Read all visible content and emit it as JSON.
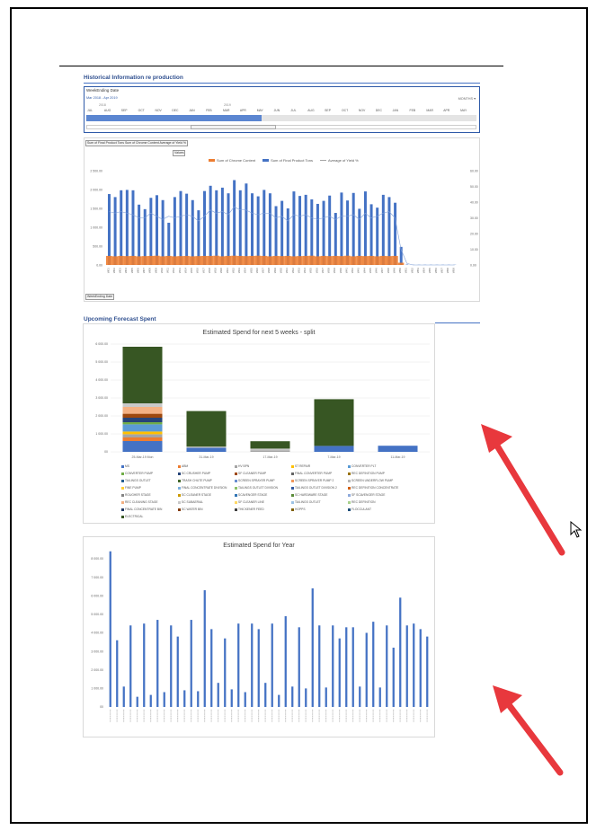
{
  "sections": {
    "historical": "Historical Information re production",
    "forecast": "Upcoming Forecast Spent"
  },
  "slicer": {
    "header": "WeekEnding Date",
    "selection": "Mar 2018 - Apr 2019",
    "level": "MONTHS",
    "years": [
      "2018",
      "2019"
    ],
    "months": [
      "JUL",
      "AUG",
      "SEP",
      "OCT",
      "NOV",
      "DEC",
      "JAN",
      "FEB",
      "MAR",
      "APR",
      "MAY",
      "JUN",
      "JUL",
      "AUG",
      "SEP",
      "OCT",
      "NOV",
      "DEC",
      "JAN",
      "FEB",
      "MAR",
      "APR",
      "MAY"
    ],
    "selected_fraction": 0.45
  },
  "pivot_chart": {
    "field_button": "Sum of Final Product Tons  Sum of Chrome Content  Average of Yield %",
    "values_button": "Values",
    "axis_button": "WeekEnding Date"
  },
  "chart_data": [
    {
      "type": "bar",
      "title": "",
      "legend_position": "top",
      "y_ticks": [
        "2 500.00",
        "2 000.00",
        "1 500.00",
        "1 000.00",
        "500.00",
        "0.00"
      ],
      "y2_ticks": [
        "60.00",
        "50.00",
        "40.00",
        "30.00",
        "20.00",
        "10.00",
        "0.00"
      ],
      "ylim": [
        0,
        2500
      ],
      "y2lim": [
        0,
        60
      ],
      "categories": [
        "W01",
        "W02",
        "W03",
        "W04",
        "W05",
        "W06",
        "W07",
        "W08",
        "W09",
        "W10",
        "W11",
        "W12",
        "W13",
        "W14",
        "W15",
        "W16",
        "W17",
        "W18",
        "W19",
        "W20",
        "W21",
        "W22",
        "W23",
        "W24",
        "W25",
        "W26",
        "W27",
        "W28",
        "W29",
        "W30",
        "W31",
        "W32",
        "W33",
        "W34",
        "W35",
        "W36",
        "W37",
        "W38",
        "W39",
        "W40",
        "W41",
        "W42",
        "W43",
        "W44",
        "W45",
        "W46",
        "W47",
        "W48",
        "W49",
        "W50",
        "W51",
        "W52",
        "W53",
        "W54",
        "W55",
        "W56",
        "W57",
        "W58",
        "W59"
      ],
      "series": [
        {
          "name": "Sum of Chrome Content",
          "color": "#ed7d31",
          "values": [
            240,
            230,
            240,
            235,
            240,
            230,
            235,
            240,
            245,
            230,
            240,
            230,
            235,
            240,
            230,
            235,
            240,
            240,
            245,
            230,
            240,
            245,
            240,
            235,
            240,
            245,
            240,
            230,
            240,
            235,
            240,
            230,
            235,
            240,
            245,
            230,
            240,
            235,
            240,
            235,
            245,
            230,
            240,
            235,
            240,
            230,
            240,
            235,
            240,
            60,
            0,
            0,
            0,
            0,
            0,
            0,
            0,
            0,
            0
          ]
        },
        {
          "name": "Sum of Final Product Tons",
          "color": "#4472c4",
          "values": [
            1880,
            1800,
            1980,
            1990,
            1980,
            1600,
            1480,
            1780,
            1850,
            1720,
            1120,
            1800,
            1960,
            1890,
            1720,
            1450,
            1960,
            2100,
            1980,
            2050,
            1900,
            2250,
            1980,
            2160,
            1900,
            1820,
            1990,
            1900,
            1560,
            1700,
            1500,
            1950,
            1830,
            1860,
            1740,
            1620,
            1700,
            1840,
            1380,
            1920,
            1710,
            1910,
            1490,
            1950,
            1610,
            1520,
            1860,
            1800,
            1650,
            480,
            10,
            5,
            5,
            5,
            5,
            5,
            5,
            5,
            5
          ]
        },
        {
          "name": "Average of Yield %",
          "color": "#a5a5a5",
          "values": [
            34,
            33,
            34,
            33,
            32,
            30,
            30,
            33,
            31,
            29,
            31,
            30,
            31,
            32,
            31,
            28,
            31,
            35,
            33,
            34,
            32,
            37,
            35,
            35,
            33,
            32,
            33,
            33,
            30,
            31,
            28,
            32,
            31,
            32,
            30,
            29,
            30,
            31,
            29,
            31,
            31,
            32,
            29,
            33,
            30,
            31,
            33,
            34,
            30,
            10,
            1,
            0,
            0,
            0,
            0,
            0,
            0,
            0,
            0
          ]
        }
      ]
    },
    {
      "type": "bar",
      "stacked": true,
      "title": "Estimated Spend for next 5 weeks - split",
      "y_ticks": [
        "6 000.00",
        "5 000.00",
        "4 000.00",
        "3 000.00",
        "2 000.00",
        "1 000.00",
        "00"
      ],
      "ylim": [
        0,
        6000
      ],
      "categories": [
        "25-Mar-19 Mon",
        "31-Mar-19",
        "17-Mar-19",
        "7-Mar-19",
        "11-Mar-19"
      ],
      "series": [
        {
          "name": "MS",
          "color": "#4472c4",
          "values": [
            600,
            230,
            0,
            330,
            340
          ]
        },
        {
          "name": "ABM",
          "color": "#ed7d31",
          "values": [
            200,
            0,
            0,
            0,
            0
          ]
        },
        {
          "name": "HV BPN",
          "color": "#a5a5a5",
          "values": [
            180,
            0,
            80,
            0,
            0
          ]
        },
        {
          "name": "ST REPAIR",
          "color": "#ffc000",
          "values": [
            150,
            0,
            0,
            0,
            0
          ]
        },
        {
          "name": "CONVERTER PLT",
          "color": "#5b9bd5",
          "values": [
            400,
            0,
            0,
            0,
            0
          ]
        },
        {
          "name": "DOG CONCENTRATE",
          "color": "#70ad47",
          "values": [
            120,
            0,
            0,
            0,
            0
          ]
        },
        {
          "name": "MIXED",
          "color": "#264478",
          "values": [
            250,
            0,
            0,
            0,
            0
          ]
        },
        {
          "name": "FINE MATERIAL",
          "color": "#9e480e",
          "values": [
            220,
            0,
            0,
            0,
            0
          ]
        },
        {
          "name": "OTHER",
          "color": "#f4b183",
          "values": [
            380,
            0,
            0,
            0,
            0
          ]
        },
        {
          "name": "SPARES",
          "color": "#c9c9c9",
          "values": [
            200,
            60,
            100,
            0,
            0
          ]
        },
        {
          "name": "ELECTRICAL",
          "color": "#375623",
          "values": [
            3150,
            1980,
            410,
            2600,
            0
          ]
        }
      ],
      "legend_items": [
        "MS",
        "ABM",
        "HV BPN",
        "ST REPAIR",
        "CONVERTER PLT",
        "CONVERTER PUMP",
        "SC CRUSHER PUMP",
        "SF CLEANER PUMP",
        "FINAL CONVERTER PUMP",
        "REC DEFINITION PUMP",
        "TAILINGS OUTLET",
        "TRASH CHUTE PUMP",
        "SCREEN SPRAYER PUMP",
        "SCREEN SPRAYER PUMP 2",
        "SCREEN UNDERFLOW PUMP",
        "FINE PUMP",
        "FINAL CONCENTRATE DIVISION",
        "TAILINGS OUTLET DIVISION",
        "TAILINGS OUTLET DIVISION 2",
        "REC DEFINITION CONCENTRATE",
        "ROUGHER STAGE",
        "SC CLEANER STAGE",
        "SCAVENGER STAGE",
        "SC HARDWARE STAGE",
        "SF SCAVENGER STAGE",
        "REC CLEANING STAGE",
        "SC SUBAERIAL",
        "SF CLEANER LINE",
        "TAILINGS OUTLET",
        "REC DEFINITION",
        "FINAL CONCENTRATE BIN",
        "SC WATER BIN",
        "THICKENER FEED",
        "HOPPS",
        "FLOCCULANT",
        "ELECTRICAL"
      ]
    },
    {
      "type": "bar",
      "title": "Estimated Spend for Year",
      "y_ticks": [
        "8 000.00",
        "7 000.00",
        "6 000.00",
        "5 000.00",
        "4 000.00",
        "3 000.00",
        "2 000.00",
        "1 000.00",
        "00"
      ],
      "ylim": [
        0,
        8000
      ],
      "series": [
        {
          "name": "",
          "color": "#4472c4",
          "values": [
            8400,
            3600,
            1100,
            4400,
            550,
            4500,
            650,
            4700,
            800,
            4400,
            3800,
            900,
            4700,
            850,
            6300,
            4200,
            1300,
            3700,
            950,
            4500,
            800,
            4500,
            4200,
            1300,
            4500,
            650,
            4900,
            1100,
            4300,
            1000,
            6400,
            4400,
            1050,
            4400,
            3700,
            4300,
            4300,
            1100,
            4000,
            4600,
            1050,
            4400,
            3200,
            5900,
            4400,
            4500,
            4200,
            3800
          ]
        }
      ]
    }
  ]
}
